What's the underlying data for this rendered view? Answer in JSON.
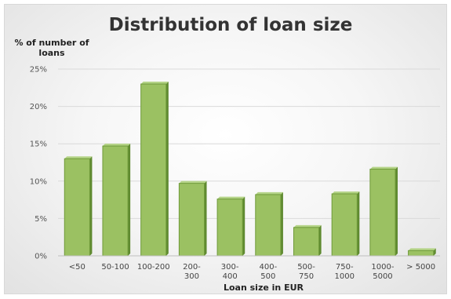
{
  "chart_data": {
    "type": "bar",
    "title": "Distribution of loan size",
    "ylabel_lines": [
      "% of number of",
      "loans"
    ],
    "xlabel": "Loan size in EUR",
    "ylim": [
      0,
      25
    ],
    "yticks": [
      0,
      5,
      10,
      15,
      20,
      25
    ],
    "ytick_labels": [
      "0%",
      "5%",
      "10%",
      "15%",
      "20%",
      "25%"
    ],
    "categories": [
      [
        "<50"
      ],
      [
        "50-100"
      ],
      [
        "100-200"
      ],
      [
        "200-",
        "300"
      ],
      [
        "300-",
        "400"
      ],
      [
        "400-",
        "500"
      ],
      [
        "500-",
        "750"
      ],
      [
        "750-",
        "1000"
      ],
      [
        "1000-",
        "5000"
      ],
      [
        "> 5000"
      ]
    ],
    "values": [
      13,
      14.7,
      23,
      9.7,
      7.6,
      8.2,
      3.8,
      8.3,
      11.6,
      0.7
    ],
    "grid": true,
    "legend": "none",
    "bar_color": "#9bc162",
    "bar_edge_color": "#6f9a3a",
    "bar_dark_color": "#5f8a30"
  }
}
